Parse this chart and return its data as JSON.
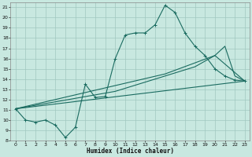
{
  "xlabel": "Humidex (Indice chaleur)",
  "xlim": [
    -0.5,
    23.5
  ],
  "ylim": [
    8,
    21.5
  ],
  "xticks": [
    0,
    1,
    2,
    3,
    4,
    5,
    6,
    7,
    8,
    9,
    10,
    11,
    12,
    13,
    14,
    15,
    16,
    17,
    18,
    19,
    20,
    21,
    22,
    23
  ],
  "yticks": [
    8,
    9,
    10,
    11,
    12,
    13,
    14,
    15,
    16,
    17,
    18,
    19,
    20,
    21
  ],
  "background_color": "#c8e8e0",
  "grid_color": "#a0c8c0",
  "line_color": "#1a6b60",
  "curve_main": {
    "x": [
      0,
      1,
      2,
      3,
      4,
      5,
      6,
      7,
      8,
      9,
      10,
      11,
      12,
      13,
      14,
      15,
      16,
      17,
      18,
      19,
      20,
      21,
      22,
      23
    ],
    "y": [
      11.1,
      10.0,
      9.8,
      10.0,
      9.5,
      8.3,
      9.3,
      13.5,
      12.2,
      12.3,
      16.0,
      18.3,
      18.5,
      18.5,
      19.3,
      21.2,
      20.5,
      18.5,
      17.2,
      16.3,
      15.0,
      14.3,
      13.9,
      13.8
    ]
  },
  "curve_line1": {
    "x": [
      0,
      23
    ],
    "y": [
      11.1,
      13.8
    ]
  },
  "curve_line2": {
    "x": [
      0,
      15,
      20,
      23
    ],
    "y": [
      11.1,
      14.5,
      16.3,
      13.8
    ]
  },
  "curve_line3": {
    "x": [
      0,
      10,
      18,
      20,
      21,
      22,
      23
    ],
    "y": [
      11.1,
      12.8,
      15.2,
      16.3,
      17.2,
      14.3,
      13.8
    ]
  }
}
